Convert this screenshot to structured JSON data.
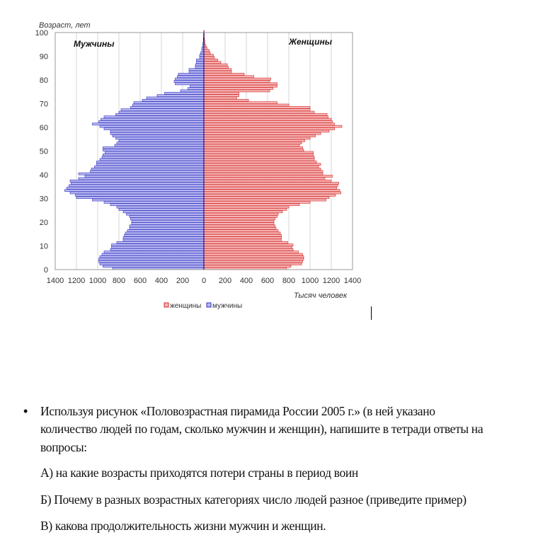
{
  "chart_data": {
    "type": "bar",
    "orientation": "horizontal-pyramid",
    "ylabel": "Возраст,  лет",
    "xlabel": "Тысяч человек",
    "left_title": "Мужчины",
    "right_title": "Женщины",
    "xlim": [
      -1400,
      1400
    ],
    "ylim": [
      0,
      100
    ],
    "x_ticks": [
      "1400",
      "1200",
      "1000",
      "800",
      "600",
      "400",
      "200",
      "0",
      "200",
      "400",
      "600",
      "800",
      "1000",
      "1200",
      "1400"
    ],
    "y_ticks": [
      "0",
      "10",
      "20",
      "30",
      "40",
      "50",
      "60",
      "70",
      "80",
      "90",
      "100"
    ],
    "legend": [
      {
        "name": "женщины",
        "color": "#e03030"
      },
      {
        "name": "мужчины",
        "color": "#3030c0"
      }
    ],
    "legend_position": "bottom",
    "grid": true,
    "ages_from": 0,
    "series": [
      {
        "name": "мужчины",
        "color": "#3030c0",
        "fill": "#b8b8f0",
        "values": [
          860,
          950,
          980,
          990,
          990,
          980,
          960,
          940,
          880,
          870,
          870,
          820,
          760,
          760,
          750,
          740,
          720,
          700,
          700,
          680,
          680,
          690,
          700,
          730,
          760,
          800,
          820,
          880,
          940,
          1050,
          1200,
          1210,
          1260,
          1310,
          1290,
          1270,
          1250,
          1260,
          1180,
          1120,
          1180,
          1070,
          1060,
          1030,
          1010,
          1010,
          980,
          960,
          950,
          930,
          950,
          950,
          840,
          820,
          800,
          830,
          860,
          880,
          880,
          940,
          980,
          1050,
          990,
          970,
          940,
          830,
          800,
          780,
          690,
          670,
          660,
          580,
          540,
          440,
          370,
          220,
          150,
          130,
          270,
          280,
          270,
          250,
          240,
          140,
          140,
          80,
          80,
          70,
          70,
          40,
          40,
          30,
          20,
          20,
          10,
          10,
          5,
          5,
          3,
          3,
          2
        ]
      },
      {
        "name": "женщины",
        "color": "#d02828",
        "fill": "#f6b4b4",
        "values": [
          780,
          820,
          920,
          930,
          940,
          940,
          930,
          890,
          840,
          830,
          840,
          790,
          730,
          730,
          730,
          720,
          700,
          680,
          670,
          660,
          660,
          670,
          690,
          700,
          740,
          780,
          800,
          900,
          1000,
          1150,
          1180,
          1240,
          1290,
          1280,
          1250,
          1260,
          1270,
          1200,
          1140,
          1210,
          1120,
          1120,
          1100,
          1080,
          1100,
          1060,
          1040,
          1040,
          1030,
          1030,
          940,
          930,
          900,
          920,
          950,
          1000,
          1050,
          1100,
          1180,
          1230,
          1300,
          1230,
          1210,
          1200,
          1170,
          1160,
          1040,
          1000,
          1000,
          800,
          690,
          420,
          310,
          330,
          330,
          620,
          650,
          690,
          690,
          620,
          630,
          470,
          380,
          260,
          260,
          230,
          220,
          160,
          130,
          100,
          90,
          60,
          50,
          30,
          20,
          10,
          8,
          5,
          3,
          2,
          1
        ]
      }
    ]
  },
  "text": {
    "bullet": "•",
    "line1": "Используя рисунок «Половозрастная пирамида России  2005 г.»  (в ней указано",
    "line2": "количество людей по годам, сколько мужчин и женщин), напишите в тетради ответы на",
    "line3": "вопросы:",
    "qa": "А) на какие возрасты приходятся потери страны в период воин",
    "qb": "Б) Почему в разных возрастных категориях число людей разное (приведите пример)",
    "qc": "В) какова продолжительность жизни мужчин и женщин."
  }
}
